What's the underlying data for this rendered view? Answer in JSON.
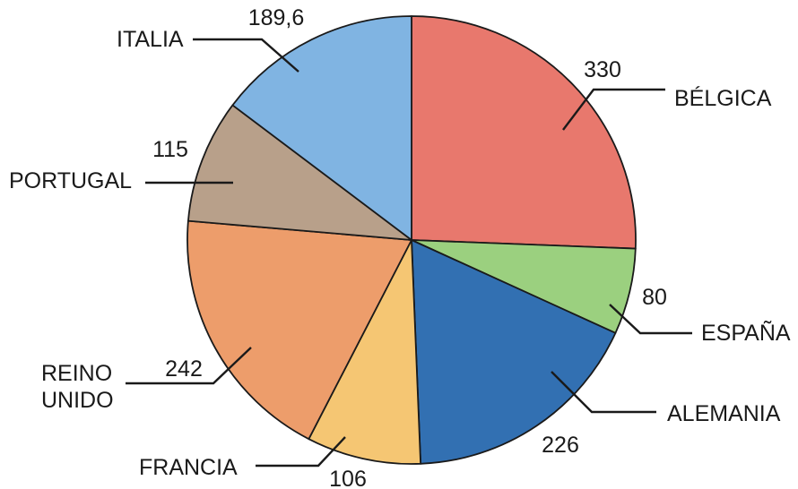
{
  "chart_data": {
    "type": "pie",
    "title": "",
    "slices": [
      {
        "label": "BÉLGICA",
        "value": 330,
        "value_label": "330",
        "color": "#e8786d"
      },
      {
        "label": "ESPAÑA",
        "value": 80,
        "value_label": "80",
        "color": "#9bd07f"
      },
      {
        "label": "ALEMANIA",
        "value": 226,
        "value_label": "226",
        "color": "#3270b2"
      },
      {
        "label": "FRANCIA",
        "value": 106,
        "value_label": "106",
        "color": "#f5c673"
      },
      {
        "label": "REINO UNIDO",
        "label_lines": [
          "REINO",
          "UNIDO"
        ],
        "value": 242,
        "value_label": "242",
        "color": "#ed9d6b"
      },
      {
        "label": "PORTUGAL",
        "value": 115,
        "value_label": "115",
        "color": "#b8a08a"
      },
      {
        "label": "ITALIA",
        "value": 189.6,
        "value_label": "189,6",
        "color": "#80b4e2"
      }
    ],
    "start_angle": "12 o'clock",
    "direction": "clockwise",
    "legend": "none"
  }
}
